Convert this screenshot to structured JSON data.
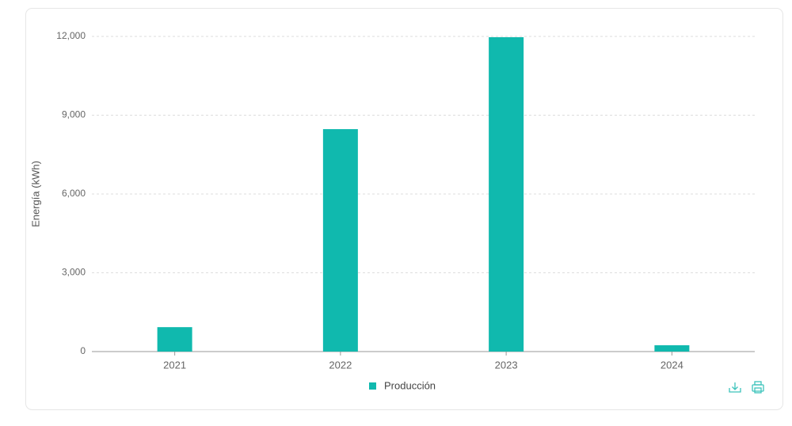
{
  "chart_data": {
    "type": "bar",
    "y_label": "Energía (kWh)",
    "categories": [
      "2021",
      "2022",
      "2023",
      "2024"
    ],
    "series": [
      {
        "name": "Producción",
        "color": "#10b9ae",
        "values": [
          930,
          8470,
          11970,
          240
        ]
      }
    ],
    "ylim": [
      0,
      12000
    ],
    "yticks": [
      0,
      {
        "value": 3000,
        "label": "3,000"
      },
      {
        "value": 6000,
        "label": "6,000"
      },
      {
        "value": 9000,
        "label": "9,000"
      },
      {
        "value": 12000,
        "label": "12,000"
      }
    ],
    "grid": true
  }
}
